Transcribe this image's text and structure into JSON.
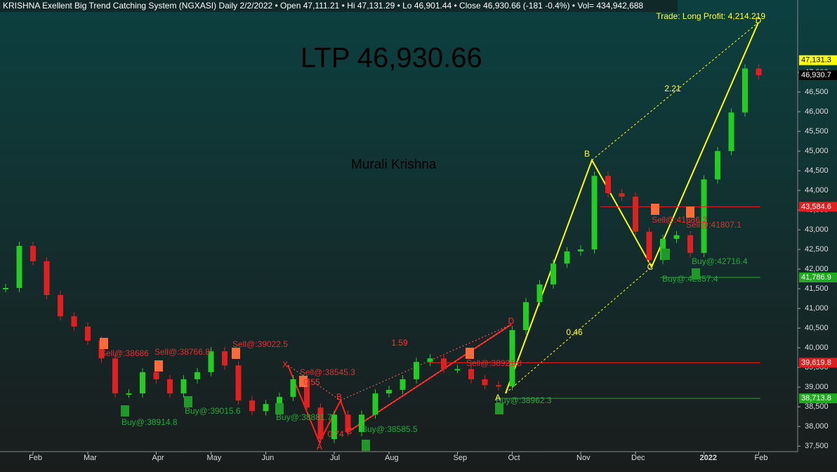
{
  "chart_data": {
    "type": "candlestick-close",
    "title": "KRISHNA Exellent Big Trend Catching System (NGXASI) Daily  2/2/2022  •  Open 47,111.21  •  Hi 47,131.29  •  Lo 46,901.44  •  Close 46,930.66 (-181 -0.4%)  •  Vol= 434,942,688",
    "ltp": "LTP 46,930.66",
    "author": "Murali Krishna",
    "trade": "Trade: Long Profit: 4,214.219",
    "categories": [
      null,
      null,
      "Feb",
      null,
      null,
      null,
      "Mar",
      null,
      null,
      null,
      null,
      "Apr",
      null,
      null,
      null,
      "May",
      null,
      null,
      null,
      "Jun",
      null,
      null,
      null,
      null,
      "Jul",
      null,
      null,
      null,
      "Aug",
      null,
      null,
      null,
      null,
      "Sep",
      null,
      null,
      null,
      "Oct",
      null,
      null,
      null,
      null,
      "Nov",
      null,
      null,
      null,
      "Dec",
      null,
      null,
      null,
      null,
      "2022",
      null,
      null,
      null,
      "Feb"
    ],
    "values": [
      41520,
      42590,
      42200,
      41340,
      40800,
      40540,
      40180,
      39730,
      38840,
      38840,
      39380,
      39200,
      38840,
      39200,
      39380,
      39910,
      39550,
      38660,
      38390,
      38570,
      38750,
      39200,
      38480,
      37680,
      38300,
      37860,
      38300,
      38840,
      38930,
      39200,
      39640,
      39730,
      39460,
      39460,
      39200,
      39050,
      39020,
      40450,
      41160,
      41610,
      42140,
      42450,
      42500,
      44370,
      43930,
      43840,
      42950,
      42230,
      42770,
      42860,
      42410,
      44280,
      45000,
      45980,
      47100,
      46930.66
    ],
    "up_color": "#22cc22",
    "down_color": "#e02020",
    "ylim": [
      37360,
      48840
    ],
    "yticks": [
      {
        "value": 37500,
        "label": "37,500"
      },
      {
        "value": 38000,
        "label": "38,000"
      },
      {
        "value": 38500,
        "label": "38,500"
      },
      {
        "value": 39000,
        "label": "39,000"
      },
      {
        "value": 39500,
        "label": "39,500"
      },
      {
        "value": 40000,
        "label": "40,000"
      },
      {
        "value": 40500,
        "label": "40,500"
      },
      {
        "value": 41000,
        "label": "41,000"
      },
      {
        "value": 41500,
        "label": "41,500"
      },
      {
        "value": 42000,
        "label": "42,000"
      },
      {
        "value": 42500,
        "label": "42,500"
      },
      {
        "value": 43000,
        "label": "43,000"
      },
      {
        "value": 43500,
        "label": "43,500"
      },
      {
        "value": 44000,
        "label": "44,000"
      },
      {
        "value": 44500,
        "label": "44,500"
      },
      {
        "value": 45000,
        "label": "45,000"
      },
      {
        "value": 45500,
        "label": "45,500"
      },
      {
        "value": 46000,
        "label": "46,000"
      },
      {
        "value": 46500,
        "label": "46,500"
      },
      {
        "value": 47000,
        "label": "47,000"
      }
    ],
    "levels": [
      {
        "value": 47131.3,
        "label": "47,131.3",
        "color": "#ffff00"
      },
      {
        "value": 46930.7,
        "label": "46,930.7",
        "color": "#000000"
      },
      {
        "value": 43584.6,
        "label": "43,584.6",
        "color": "#e02020"
      },
      {
        "value": 41786.9,
        "label": "41,786.9",
        "color": "#22aa22"
      },
      {
        "value": 39619.8,
        "label": "39,619.8",
        "color": "#e02020"
      },
      {
        "value": 38713.8,
        "label": "38,713.8",
        "color": "#22aa22"
      }
    ],
    "signals": [
      {
        "label": "Sell@:38686",
        "kind": "sell"
      },
      {
        "label": "Sell@:38766.8",
        "kind": "sell"
      },
      {
        "label": "Sell@:39022.5",
        "kind": "sell"
      },
      {
        "label": "Sell@:38545.3",
        "kind": "sell"
      },
      {
        "label": "Sell@:38921.8",
        "kind": "sell"
      },
      {
        "label": "Sell@:41686.2",
        "kind": "sell"
      },
      {
        "label": "Sell@:41807.1",
        "kind": "sell"
      },
      {
        "label": "Buy@:38914.8",
        "kind": "buy"
      },
      {
        "label": "Buy@:39015.6",
        "kind": "buy"
      },
      {
        "label": "Buy@:38881.7",
        "kind": "buy"
      },
      {
        "label": "Buy@:38585.5",
        "kind": "buy"
      },
      {
        "label": "Buy@:38962.3",
        "kind": "buy"
      },
      {
        "label": "Buy@:42357.4",
        "kind": "buy"
      },
      {
        "label": "Buy@:42716.4",
        "kind": "buy"
      }
    ],
    "pattern_labels": [
      "X",
      "A",
      "B",
      "C",
      "D",
      "A",
      "B",
      "C",
      "D",
      "0.55",
      "0.74",
      "1.59",
      "2.21",
      "0.46"
    ]
  }
}
